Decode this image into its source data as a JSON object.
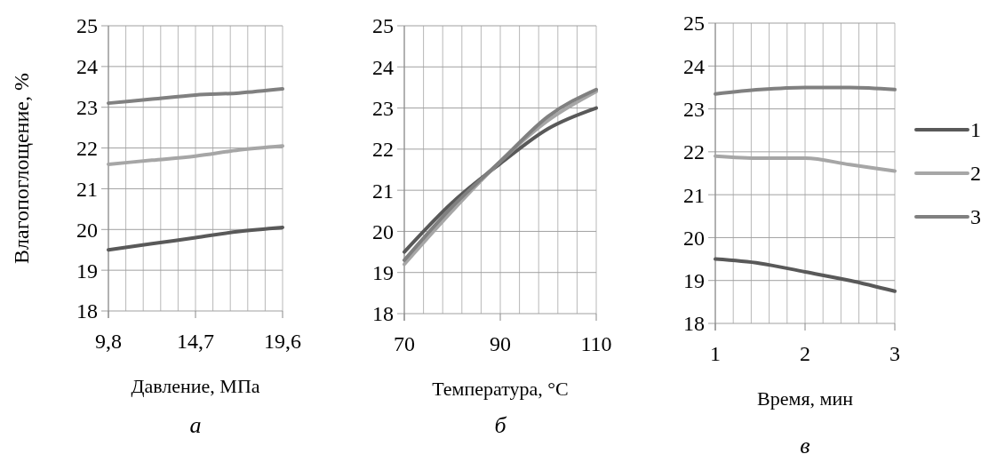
{
  "chart_data": [
    {
      "type": "line",
      "xlabel": "Давление, МПа",
      "ylabel": "Влагопоглощение, %",
      "x": [
        9.8,
        12.25,
        14.7,
        17.15,
        19.6
      ],
      "xlim": [
        9.8,
        19.6
      ],
      "xticks": [
        {
          "value": 9.8,
          "label": "9,8"
        },
        {
          "value": 14.7,
          "label": "14,7"
        },
        {
          "value": 19.6,
          "label": "19,6"
        }
      ],
      "ylim": [
        18,
        25
      ],
      "yticks": [
        18,
        19,
        20,
        21,
        22,
        23,
        24,
        25
      ],
      "grid": true,
      "annotations": [
        "а"
      ],
      "series": [
        {
          "color": "#595959",
          "values": [
            19.5,
            19.65,
            19.8,
            19.95,
            20.05
          ]
        },
        {
          "color": "#a6a6a6",
          "values": [
            21.6,
            21.7,
            21.8,
            21.95,
            22.05
          ]
        },
        {
          "color": "#808080",
          "values": [
            23.1,
            23.2,
            23.3,
            23.35,
            23.45
          ]
        }
      ]
    },
    {
      "type": "line",
      "xlabel": "Температура, °C",
      "x": [
        70,
        80,
        90,
        100,
        110
      ],
      "xlim": [
        70,
        110
      ],
      "xticks": [
        70,
        90,
        110
      ],
      "ylim": [
        18,
        25
      ],
      "yticks": [
        18,
        19,
        20,
        21,
        22,
        23,
        24,
        25
      ],
      "grid": true,
      "annotations": [
        "б"
      ],
      "series": [
        {
          "color": "#595959",
          "values": [
            19.5,
            20.7,
            21.65,
            22.5,
            23.0
          ]
        },
        {
          "color": "#a6a6a6",
          "values": [
            19.2,
            20.5,
            21.7,
            22.7,
            23.4
          ]
        },
        {
          "color": "#808080",
          "values": [
            19.3,
            20.6,
            21.7,
            22.8,
            23.45
          ]
        }
      ]
    },
    {
      "type": "line",
      "xlabel": "Время, мин",
      "x": [
        1,
        1.5,
        2,
        2.5,
        3
      ],
      "xlim": [
        1,
        3
      ],
      "xticks": [
        1,
        2,
        3
      ],
      "ylim": [
        18,
        25
      ],
      "yticks": [
        18,
        19,
        20,
        21,
        22,
        23,
        24,
        25
      ],
      "grid": true,
      "legend": "right",
      "annotations": [
        "в"
      ],
      "series": [
        {
          "name": "1",
          "color": "#595959",
          "values": [
            19.5,
            19.4,
            19.2,
            19.0,
            18.75
          ]
        },
        {
          "name": "2",
          "color": "#a6a6a6",
          "values": [
            21.9,
            21.85,
            21.85,
            21.7,
            21.55
          ]
        },
        {
          "name": "3",
          "color": "#808080",
          "values": [
            23.35,
            23.45,
            23.5,
            23.5,
            23.45
          ]
        }
      ]
    }
  ]
}
